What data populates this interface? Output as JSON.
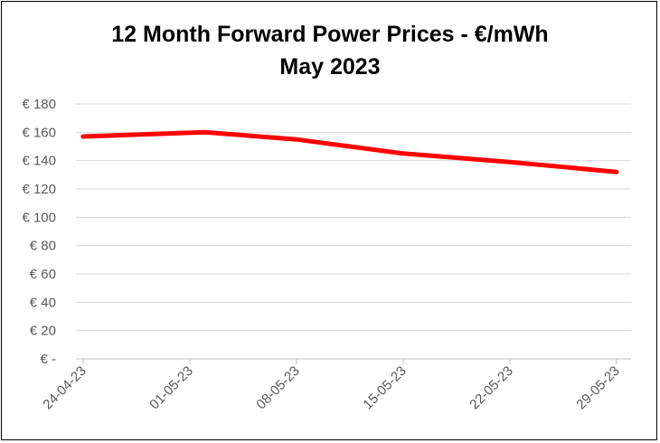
{
  "chart_data": {
    "type": "line",
    "title": "12 Month Forward Power Prices - €/mWh",
    "subtitle": "May 2023",
    "xlabel": "",
    "ylabel": "",
    "y_ticks": [
      "€ -",
      "€ 20",
      "€ 40",
      "€ 60",
      "€ 80",
      "€ 100",
      "€ 120",
      "€ 140",
      "€ 160",
      "€ 180"
    ],
    "y_tick_values": [
      0,
      20,
      40,
      60,
      80,
      100,
      120,
      140,
      160,
      180
    ],
    "ylim": [
      0,
      180
    ],
    "x_ticks": [
      "24-04-23",
      "01-05-23",
      "08-05-23",
      "15-05-23",
      "22-05-23",
      "29-05-23"
    ],
    "x_tick_dates": [
      "2023-04-24",
      "2023-05-01",
      "2023-05-08",
      "2023-05-15",
      "2023-05-22",
      "2023-05-29"
    ],
    "xlim": [
      "2023-04-24",
      "2023-05-29"
    ],
    "grid": true,
    "legend": "none",
    "series": [
      {
        "color": "#ff0000",
        "x": [
          "2023-04-24",
          "2023-05-02",
          "2023-05-08",
          "2023-05-15",
          "2023-05-22",
          "2023-05-29"
        ],
        "values": [
          157,
          160,
          155,
          145,
          139,
          132
        ]
      }
    ]
  }
}
